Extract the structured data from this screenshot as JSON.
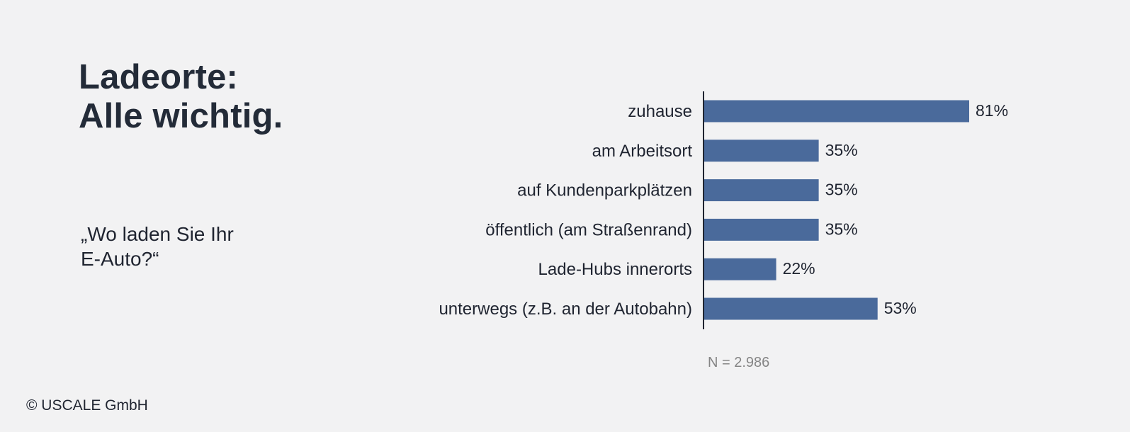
{
  "title": {
    "line1": "Ladeorte:",
    "line2": "Alle wichtig."
  },
  "question": {
    "line1": "„Wo laden Sie Ihr",
    "line2": "E-Auto?“"
  },
  "sample_note": "N = 2.986",
  "copyright": "© USCALE GmbH",
  "colors": {
    "bar": "#4a6a9b",
    "axis": "#1f2430",
    "text": "#1f2430"
  },
  "chart_data": {
    "type": "bar",
    "orientation": "horizontal",
    "categories": [
      "zuhause",
      "am Arbeitsort",
      "auf Kundenparkplätzen",
      "öffentlich (am Straßenrand)",
      "Lade-Hubs innerorts",
      "unterwegs (z.B. an der Autobahn)"
    ],
    "values": [
      81,
      35,
      35,
      35,
      22,
      53
    ],
    "value_labels": [
      "81%",
      "35%",
      "35%",
      "35%",
      "22%",
      "53%"
    ],
    "xlim": [
      0,
      100
    ],
    "grid": false,
    "legend": "none"
  }
}
